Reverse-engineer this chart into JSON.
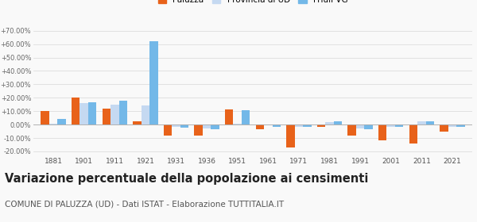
{
  "years": [
    1881,
    1901,
    1911,
    1921,
    1931,
    1936,
    1951,
    1961,
    1971,
    1981,
    1991,
    2001,
    2011,
    2021
  ],
  "paluzza": [
    10.0,
    20.0,
    12.0,
    2.5,
    -8.0,
    -8.5,
    11.0,
    -3.5,
    -17.0,
    -2.0,
    -8.0,
    -12.0,
    -14.0,
    -5.0
  ],
  "provincia_ud": [
    0.5,
    16.0,
    15.0,
    14.0,
    -2.0,
    -3.0,
    0.5,
    -0.5,
    -2.0,
    2.0,
    -3.0,
    -1.5,
    2.5,
    -2.0
  ],
  "friuli_vg": [
    4.0,
    16.5,
    18.0,
    62.0,
    -2.5,
    -3.5,
    10.5,
    -1.5,
    -2.0,
    2.5,
    -3.5,
    -1.5,
    2.5,
    -2.0
  ],
  "color_paluzza": "#e8621a",
  "color_provincia": "#c5d9f1",
  "color_friuli": "#73b8e8",
  "title": "Variazione percentuale della popolazione ai censimenti",
  "subtitle": "COMUNE DI PALUZZA (UD) - Dati ISTAT - Elaborazione TUTTITALIA.IT",
  "title_fontsize": 10.5,
  "subtitle_fontsize": 7.5,
  "yticks": [
    -20,
    -10,
    0,
    10,
    20,
    30,
    40,
    50,
    60,
    70
  ],
  "ylim": [
    -23,
    73
  ],
  "background_color": "#f9f9f9",
  "grid_color": "#dddddd"
}
